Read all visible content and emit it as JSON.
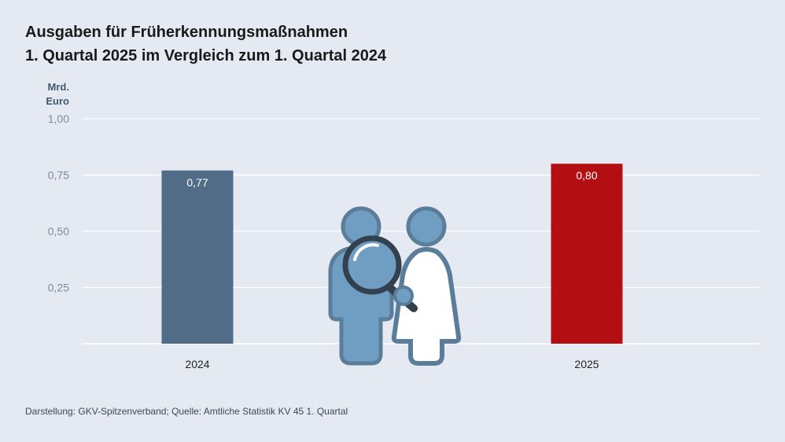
{
  "title": {
    "line1": "Ausgaben für Früherkennungsmaßnahmen",
    "line2": "1. Quartal 2025 im Vergleich zum 1. Quartal 2024"
  },
  "y_unit": {
    "line1": "Mrd.",
    "line2": "Euro"
  },
  "source": "Darstellung: GKV-Spitzenverband; Quelle: Amtliche Statistik KV 45 1. Quartal",
  "colors": {
    "bar_2024": "#506c86",
    "bar_2025": "#b30f12",
    "grid": "#ffffff",
    "tick_text": "#7d8b9c",
    "illustration_figure": "#6f9ec2",
    "illustration_outline": "#5a7d9a",
    "magnifier": "#33414f"
  },
  "illustration": "people-with-magnifying-glass-icon",
  "chart_data": {
    "type": "bar",
    "categories": [
      "2024",
      "2025"
    ],
    "values": [
      0.77,
      0.8
    ],
    "value_labels": [
      "0,77",
      "0,80"
    ],
    "ylim": [
      0,
      1.0
    ],
    "yticks": [
      0.25,
      0.5,
      0.75,
      1.0
    ],
    "ytick_labels": [
      "0,25",
      "0,50",
      "0,75",
      "1,00"
    ],
    "grid": true,
    "legend": "none"
  }
}
